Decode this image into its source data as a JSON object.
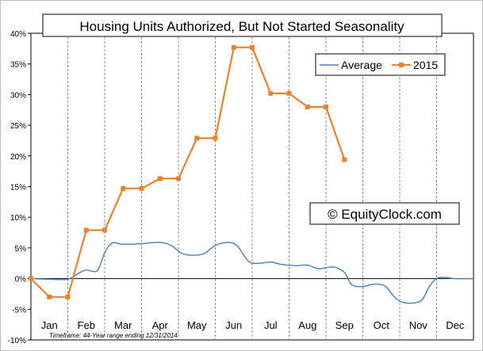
{
  "chart_data": {
    "type": "line",
    "title": "Housing Units Authorized, But Not Started Seasonality",
    "watermark": "© EquityClock.com",
    "footnote": "Timeframe: 44-Year range ending 12/31/2014",
    "categories": [
      "Jan",
      "Feb",
      "Mar",
      "Apr",
      "May",
      "Jun",
      "Jul",
      "Aug",
      "Sep",
      "Oct",
      "Nov",
      "Dec"
    ],
    "y_ticks": [
      "40%",
      "35%",
      "30%",
      "25%",
      "20%",
      "15%",
      "10%",
      "5%",
      "0%",
      "-5%",
      "-10%"
    ],
    "ylim": [
      -10,
      40
    ],
    "grid": "vertical dashed at month boundaries",
    "legend_position": "top-right",
    "series": [
      {
        "name": "Average",
        "color": "#4a7ebb",
        "style": "smooth-line",
        "points": [
          [
            0,
            0.0
          ],
          [
            0.5,
            -0.1
          ],
          [
            1.0,
            -0.1
          ],
          [
            1.3,
            0.9
          ],
          [
            1.5,
            1.4
          ],
          [
            1.8,
            1.3
          ],
          [
            2.0,
            4.2
          ],
          [
            2.2,
            5.8
          ],
          [
            2.5,
            5.6
          ],
          [
            3.0,
            5.7
          ],
          [
            3.5,
            5.9
          ],
          [
            3.8,
            5.4
          ],
          [
            4.1,
            4.1
          ],
          [
            4.4,
            3.8
          ],
          [
            4.7,
            4.1
          ],
          [
            5.0,
            5.4
          ],
          [
            5.35,
            5.9
          ],
          [
            5.6,
            5.3
          ],
          [
            5.9,
            2.8
          ],
          [
            6.2,
            2.5
          ],
          [
            6.5,
            2.7
          ],
          [
            6.8,
            2.3
          ],
          [
            7.2,
            2.1
          ],
          [
            7.5,
            2.2
          ],
          [
            7.8,
            1.6
          ],
          [
            8.2,
            1.9
          ],
          [
            8.5,
            1.0
          ],
          [
            8.7,
            -1.0
          ],
          [
            9.0,
            -1.3
          ],
          [
            9.3,
            -0.9
          ],
          [
            9.6,
            -1.2
          ],
          [
            9.8,
            -2.6
          ],
          [
            10.0,
            -3.7
          ],
          [
            10.3,
            -4.0
          ],
          [
            10.6,
            -3.5
          ],
          [
            10.8,
            -1.3
          ],
          [
            11.0,
            0.0
          ],
          [
            11.2,
            0.2
          ],
          [
            11.5,
            0.0
          ],
          [
            12.0,
            0.0
          ]
        ]
      },
      {
        "name": "2015",
        "color": "#e8822c",
        "style": "line-with-square-markers",
        "points": [
          [
            0.0,
            0.0
          ],
          [
            0.5,
            -3.0
          ],
          [
            1.0,
            -3.0
          ],
          [
            1.5,
            7.9
          ],
          [
            2.0,
            7.9
          ],
          [
            2.5,
            14.7
          ],
          [
            3.0,
            14.7
          ],
          [
            3.5,
            16.3
          ],
          [
            4.0,
            16.3
          ],
          [
            4.5,
            22.9
          ],
          [
            5.0,
            22.9
          ],
          [
            5.5,
            37.7
          ],
          [
            6.0,
            37.7
          ],
          [
            6.5,
            30.2
          ],
          [
            7.0,
            30.2
          ],
          [
            7.5,
            28.0
          ],
          [
            8.0,
            28.0
          ],
          [
            8.5,
            19.4
          ]
        ]
      }
    ]
  }
}
